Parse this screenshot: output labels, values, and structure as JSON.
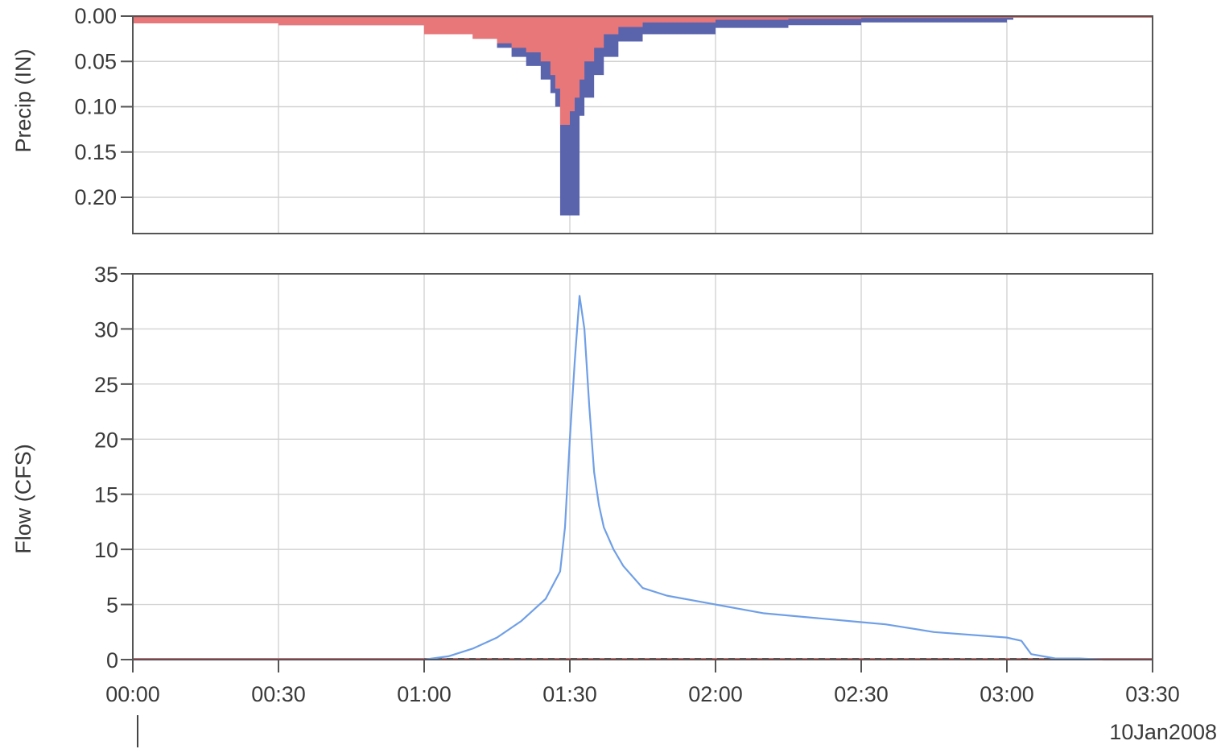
{
  "colors": {
    "excess": "#e8777a",
    "loss": "#5a64ad",
    "flow": "#6f9fe6",
    "observed": "#e06666",
    "baseline": "#444444",
    "grid": "#d2d2d2",
    "frame": "#555555"
  },
  "chart_data": [
    {
      "type": "area",
      "ylabel": "Precip (IN)",
      "yticks": [
        "0.00",
        "0.05",
        "0.10",
        "0.15",
        "0.20"
      ],
      "ylim": [
        0,
        0.24
      ],
      "y_inverted": true,
      "xlim": [
        "00:00",
        "03:30"
      ],
      "grid": true,
      "series": [
        {
          "color_key": "loss",
          "x": [
            "00:00",
            "00:20",
            "00:30",
            "01:00",
            "01:10",
            "01:15",
            "01:18",
            "01:21",
            "01:24",
            "01:26",
            "01:27",
            "01:28",
            "01:30",
            "01:31",
            "01:32",
            "01:33",
            "01:35",
            "01:37",
            "01:40",
            "01:45",
            "02:00",
            "02:15",
            "02:30",
            "03:00"
          ],
          "values": [
            0.008,
            0.008,
            0.01,
            0.02,
            0.025,
            0.035,
            0.045,
            0.055,
            0.07,
            0.085,
            0.1,
            0.22,
            0.22,
            0.22,
            0.11,
            0.09,
            0.065,
            0.045,
            0.028,
            0.02,
            0.013,
            0.01,
            0.007,
            0.004
          ]
        },
        {
          "color_key": "excess",
          "x": [
            "00:00",
            "00:20",
            "00:30",
            "01:00",
            "01:10",
            "01:15",
            "01:18",
            "01:21",
            "01:24",
            "01:26",
            "01:27",
            "01:28",
            "01:30",
            "01:31",
            "01:32",
            "01:33",
            "01:35",
            "01:37",
            "01:40",
            "01:45",
            "02:00",
            "02:15",
            "02:30",
            "03:00"
          ],
          "values": [
            0.008,
            0.008,
            0.01,
            0.02,
            0.025,
            0.03,
            0.035,
            0.04,
            0.05,
            0.065,
            0.08,
            0.12,
            0.105,
            0.09,
            0.07,
            0.05,
            0.035,
            0.02,
            0.012,
            0.007,
            0.004,
            0.003,
            0.002,
            0.001
          ]
        }
      ]
    },
    {
      "type": "line",
      "ylabel": "Flow (CFS)",
      "yticks": [
        "0",
        "5",
        "10",
        "15",
        "20",
        "25",
        "30",
        "35"
      ],
      "ylim": [
        0,
        35
      ],
      "xticks": [
        "00:00",
        "00:30",
        "01:00",
        "01:30",
        "02:00",
        "02:30",
        "03:00",
        "03:30"
      ],
      "xlim": [
        "00:00",
        "03:30"
      ],
      "date_label": "10Jan2008",
      "grid": true,
      "series": [
        {
          "color_key": "flow",
          "x": [
            "00:00",
            "01:00",
            "01:05",
            "01:10",
            "01:15",
            "01:20",
            "01:25",
            "01:28",
            "01:29",
            "01:30",
            "01:31",
            "01:32",
            "01:33",
            "01:34",
            "01:35",
            "01:36",
            "01:37",
            "01:39",
            "01:41",
            "01:45",
            "01:50",
            "02:00",
            "02:10",
            "02:20",
            "02:30",
            "02:35",
            "02:45",
            "03:00",
            "03:03",
            "03:05",
            "03:10",
            "03:15",
            "03:20",
            "03:30"
          ],
          "values": [
            0,
            0,
            0.3,
            1,
            2,
            3.5,
            5.5,
            8,
            12,
            20,
            27,
            33,
            30,
            23,
            17,
            14,
            12,
            10,
            8.5,
            6.5,
            5.8,
            5,
            4.2,
            3.8,
            3.4,
            3.2,
            2.5,
            2,
            1.7,
            0.5,
            0.1,
            0.1,
            0,
            0
          ]
        },
        {
          "color_key": "observed",
          "x": [
            "00:00",
            "03:30"
          ],
          "values": [
            0,
            0
          ]
        }
      ]
    }
  ]
}
